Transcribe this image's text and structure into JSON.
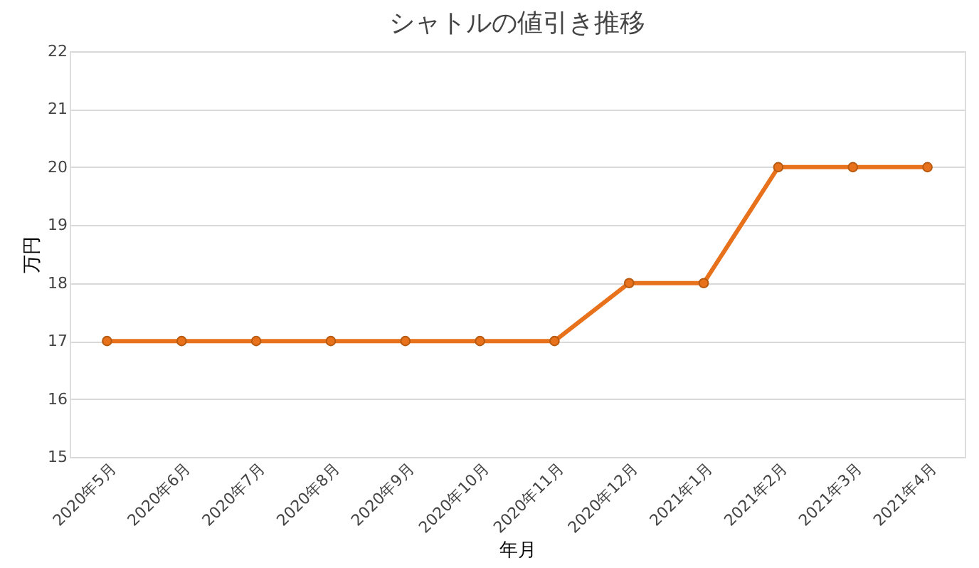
{
  "chart_data": {
    "type": "line",
    "title": "シャトルの値引き推移",
    "xlabel": "年月",
    "ylabel": "万円",
    "categories": [
      "2020年5月",
      "2020年6月",
      "2020年7月",
      "2020年8月",
      "2020年9月",
      "2020年10月",
      "2020年11月",
      "2020年12月",
      "2021年1月",
      "2021年2月",
      "2021年3月",
      "2021年4月"
    ],
    "series": [
      {
        "color": "#e8711c",
        "values": [
          17,
          17,
          17,
          17,
          17,
          17,
          17,
          18,
          18,
          20,
          20,
          20
        ]
      }
    ],
    "ylim": [
      15,
      22
    ],
    "yticks": [
      15,
      16,
      17,
      18,
      19,
      20,
      21,
      22
    ],
    "grid": "y",
    "marker": "circle",
    "line_style": "solid"
  }
}
